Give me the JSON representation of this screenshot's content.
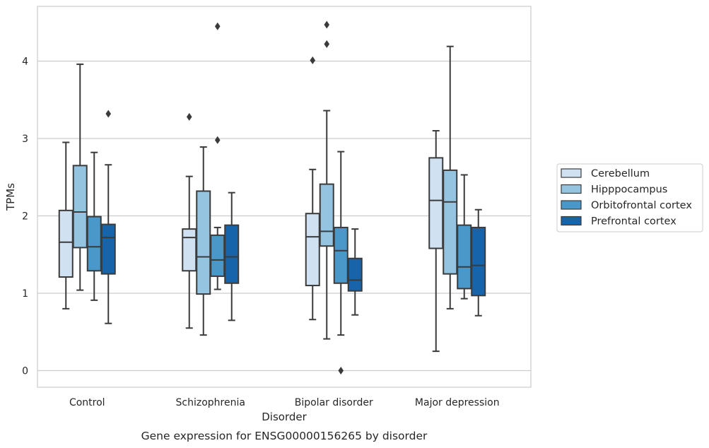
{
  "chart_data": {
    "type": "boxplot",
    "caption": "Gene expression for ENSG00000156265 by disorder",
    "xlabel": "Disorder",
    "ylabel": "TPMs",
    "ylim": [
      -0.2,
      4.7
    ],
    "yticks": [
      "0",
      "1",
      "2",
      "3",
      "4"
    ],
    "grid": "horizontal",
    "legend_position": "right",
    "categories": [
      "Control",
      "Schizophrenia",
      "Bipolar disorder",
      "Major depression"
    ],
    "series": [
      {
        "name": "Cerebellum",
        "color": "#d0e1f2",
        "boxes": [
          {
            "whislo": 0.8,
            "q1": 1.21,
            "med": 1.66,
            "q3": 2.07,
            "whishi": 2.95,
            "fliers": []
          },
          {
            "whislo": 0.55,
            "q1": 1.29,
            "med": 1.72,
            "q3": 1.83,
            "whishi": 2.51,
            "fliers": [
              3.28
            ]
          },
          {
            "whislo": 0.66,
            "q1": 1.1,
            "med": 1.73,
            "q3": 2.03,
            "whishi": 2.6,
            "fliers": [
              4.01
            ]
          },
          {
            "whislo": 0.25,
            "q1": 1.58,
            "med": 2.2,
            "q3": 2.75,
            "whishi": 3.1,
            "fliers": []
          }
        ]
      },
      {
        "name": "Hipppocampus",
        "color": "#94c4df",
        "boxes": [
          {
            "whislo": 1.04,
            "q1": 1.59,
            "med": 2.05,
            "q3": 2.65,
            "whishi": 3.96,
            "fliers": []
          },
          {
            "whislo": 0.46,
            "q1": 0.99,
            "med": 1.47,
            "q3": 2.32,
            "whishi": 2.89,
            "fliers": []
          },
          {
            "whislo": 0.41,
            "q1": 1.61,
            "med": 1.8,
            "q3": 2.41,
            "whishi": 3.36,
            "fliers": [
              4.22,
              4.47
            ]
          },
          {
            "whislo": 0.8,
            "q1": 1.25,
            "med": 2.18,
            "q3": 2.59,
            "whishi": 4.19,
            "fliers": []
          }
        ]
      },
      {
        "name": "Orbitofrontal cortex",
        "color": "#4a98c9",
        "boxes": [
          {
            "whislo": 0.91,
            "q1": 1.29,
            "med": 1.6,
            "q3": 1.99,
            "whishi": 2.82,
            "fliers": []
          },
          {
            "whislo": 1.05,
            "q1": 1.22,
            "med": 1.43,
            "q3": 1.75,
            "whishi": 1.85,
            "fliers": [
              2.98,
              4.45
            ]
          },
          {
            "whislo": 0.46,
            "q1": 1.13,
            "med": 1.55,
            "q3": 1.85,
            "whishi": 2.83,
            "fliers": [
              0.0
            ]
          },
          {
            "whislo": 0.93,
            "q1": 1.06,
            "med": 1.34,
            "q3": 1.88,
            "whishi": 2.53,
            "fliers": []
          }
        ]
      },
      {
        "name": "Prefrontal cortex",
        "color": "#1764ab",
        "boxes": [
          {
            "whislo": 0.61,
            "q1": 1.25,
            "med": 1.72,
            "q3": 1.89,
            "whishi": 2.66,
            "fliers": [
              3.32
            ]
          },
          {
            "whislo": 0.65,
            "q1": 1.13,
            "med": 1.47,
            "q3": 1.88,
            "whishi": 2.3,
            "fliers": []
          },
          {
            "whislo": 0.72,
            "q1": 1.03,
            "med": 1.17,
            "q3": 1.45,
            "whishi": 1.83,
            "fliers": []
          },
          {
            "whislo": 0.71,
            "q1": 0.97,
            "med": 1.36,
            "q3": 1.85,
            "whishi": 2.08,
            "fliers": []
          }
        ]
      }
    ]
  }
}
